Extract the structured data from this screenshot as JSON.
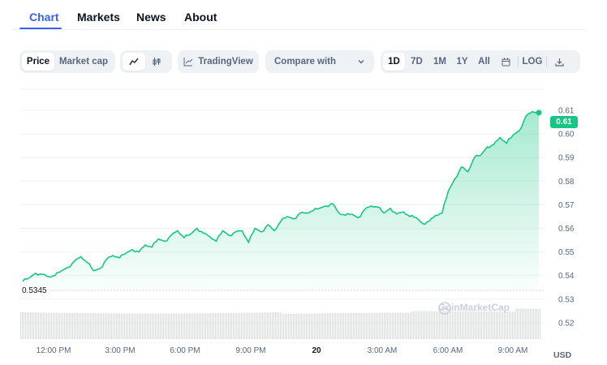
{
  "tabs": [
    {
      "label": "Chart",
      "active": true
    },
    {
      "label": "Markets",
      "active": false
    },
    {
      "label": "News",
      "active": false
    },
    {
      "label": "About",
      "active": false
    }
  ],
  "toolbar": {
    "metric_options": [
      "Price",
      "Market cap"
    ],
    "metric_selected": "Price",
    "chart_style_icons": [
      "line-chart-icon",
      "candlestick-icon"
    ],
    "tradingview_label": "TradingView",
    "compare_label": "Compare with",
    "ranges": [
      "1D",
      "7D",
      "1M",
      "1Y",
      "All"
    ],
    "range_selected": "1D",
    "log_label": "LOG",
    "extra_icons": [
      "calendar-icon",
      "download-icon"
    ]
  },
  "colors": {
    "accent": "#3861fb",
    "up": "#16c784",
    "muted": "#58667e"
  },
  "chart_data": {
    "type": "area",
    "x_labels": [
      "12:00 PM",
      "3:00 PM",
      "6:00 PM",
      "9:00 PM",
      "20",
      "3:00 AM",
      "6:00 AM",
      "9:00 AM"
    ],
    "y_ticks": [
      "0.61",
      "0.60",
      "0.59",
      "0.58",
      "0.57",
      "0.56",
      "0.55",
      "0.54",
      "0.53",
      "0.52"
    ],
    "ylim": [
      0.516,
      0.614
    ],
    "x_hours": [
      0,
      24.3
    ],
    "current_price": "0.61",
    "open_price": "0.5345",
    "currency": "USD",
    "watermark": "CoinMarketCap",
    "series": [
      {
        "hours": [
          0.0,
          0.3,
          0.6,
          0.9,
          1.2,
          1.5,
          1.8,
          2.1,
          2.4,
          2.7,
          3.0,
          3.3,
          3.6,
          3.9,
          4.2,
          4.5,
          4.8,
          5.1,
          5.4,
          5.7,
          6.0,
          6.3,
          6.6,
          6.9,
          7.2,
          7.5,
          7.8,
          8.1,
          8.4,
          8.7,
          9.0,
          9.3,
          9.6,
          9.9,
          10.2,
          10.5,
          10.8,
          11.1,
          11.4,
          11.7,
          12.0,
          12.3,
          12.6,
          12.9,
          13.2,
          13.5,
          13.8,
          14.1,
          14.4,
          14.7,
          15.0,
          15.3,
          15.6,
          15.9,
          16.2,
          16.5,
          16.8,
          17.1,
          17.4,
          17.7,
          18.0,
          18.3,
          18.6,
          18.9,
          19.2,
          19.5,
          19.8,
          20.1,
          20.4,
          20.7,
          21.0,
          21.3,
          21.6,
          21.9,
          22.2,
          22.5,
          22.8,
          23.1,
          23.4,
          23.7,
          24.0
        ],
        "values": [
          0.5375,
          0.539,
          0.541,
          0.5405,
          0.5395,
          0.54,
          0.542,
          0.5435,
          0.546,
          0.548,
          0.5455,
          0.542,
          0.543,
          0.547,
          0.5485,
          0.5475,
          0.5495,
          0.551,
          0.55,
          0.553,
          0.552,
          0.5555,
          0.5545,
          0.557,
          0.559,
          0.556,
          0.5575,
          0.56,
          0.558,
          0.5565,
          0.5545,
          0.559,
          0.557,
          0.5585,
          0.559,
          0.554,
          0.56,
          0.5585,
          0.5615,
          0.559,
          0.563,
          0.565,
          0.564,
          0.5665,
          0.5665,
          0.5675,
          0.5685,
          0.5695,
          0.5705,
          0.5665,
          0.5655,
          0.566,
          0.5645,
          0.568,
          0.5695,
          0.569,
          0.5665,
          0.5685,
          0.566,
          0.567,
          0.565,
          0.5645,
          0.562,
          0.563,
          0.5655,
          0.5665,
          0.576,
          0.581,
          0.586,
          0.584,
          0.59,
          0.591,
          0.5945,
          0.5955,
          0.5985,
          0.596,
          0.5995,
          0.6015,
          0.6075,
          0.6095,
          0.609
        ]
      }
    ]
  }
}
